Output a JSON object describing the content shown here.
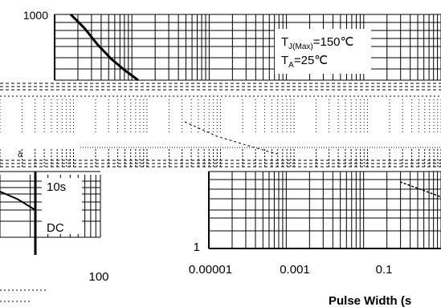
{
  "chart_data": [
    {
      "type": "line",
      "title": "",
      "annotations": [
        {
          "label": "T",
          "subscript": "J(Max)",
          "suffix": "=150℃"
        },
        {
          "label": "T",
          "subscript": "A",
          "suffix": "=25℃"
        }
      ],
      "y_tick_labels": [
        "1000"
      ],
      "x_tick_labels": [],
      "series": [
        {
          "values": [
            1000,
            820,
            640,
            520,
            440,
            380
          ]
        }
      ]
    },
    {
      "type": "line",
      "title": "",
      "annotations": [
        "10s",
        "DC"
      ],
      "x_tick_labels": [
        "100"
      ],
      "series": [
        {
          "values": [
            0.6,
            0.45,
            0.3
          ]
        }
      ]
    },
    {
      "type": "line",
      "title": "",
      "xlabel": "Pulse Width (s",
      "x_scale": "log",
      "x_tick_labels": [
        "0.00001",
        "0.001",
        "0.1"
      ],
      "y_tick_labels": [
        "1"
      ],
      "series": [
        {
          "values": [
            0.9,
            0.6
          ]
        }
      ]
    }
  ]
}
